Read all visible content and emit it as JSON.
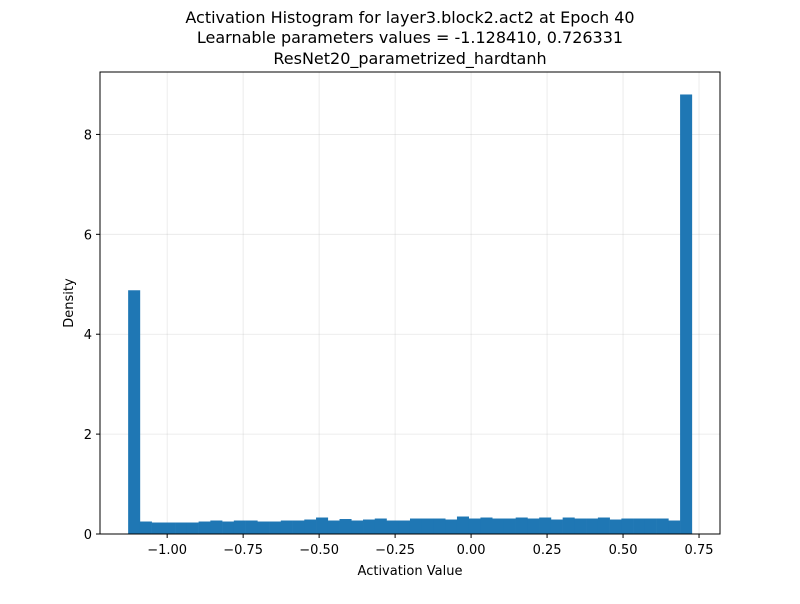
{
  "chart_data": {
    "type": "bar",
    "title_lines": [
      "Activation Histogram for layer3.block2.act2 at Epoch 40",
      "Learnable parameters values = -1.128410, 0.726331",
      "ResNet20_parametrized_hardtanh"
    ],
    "xlabel": "Activation Value",
    "ylabel": "Density",
    "xlim": [
      -1.221,
      0.819
    ],
    "ylim": [
      0,
      9.25
    ],
    "xticks": [
      -1.0,
      -0.75,
      -0.5,
      -0.25,
      0.0,
      0.25,
      0.5,
      0.75
    ],
    "xtick_labels": [
      "−1.00",
      "−0.75",
      "−0.50",
      "−0.25",
      "0.00",
      "0.25",
      "0.50",
      "0.75"
    ],
    "yticks": [
      0,
      2,
      4,
      6,
      8
    ],
    "ytick_labels": [
      "0",
      "2",
      "4",
      "6",
      "8"
    ],
    "grid": true,
    "bar_color": "#1f77b4",
    "bin_start": -1.12841,
    "bin_end": 0.726331,
    "density": [
      4.88,
      0.25,
      0.23,
      0.23,
      0.23,
      0.23,
      0.25,
      0.27,
      0.25,
      0.27,
      0.27,
      0.25,
      0.25,
      0.27,
      0.27,
      0.29,
      0.33,
      0.27,
      0.3,
      0.27,
      0.29,
      0.31,
      0.27,
      0.27,
      0.31,
      0.31,
      0.31,
      0.29,
      0.35,
      0.31,
      0.33,
      0.31,
      0.31,
      0.33,
      0.31,
      0.33,
      0.29,
      0.33,
      0.31,
      0.31,
      0.33,
      0.29,
      0.31,
      0.31,
      0.31,
      0.31,
      0.27,
      8.8
    ]
  }
}
